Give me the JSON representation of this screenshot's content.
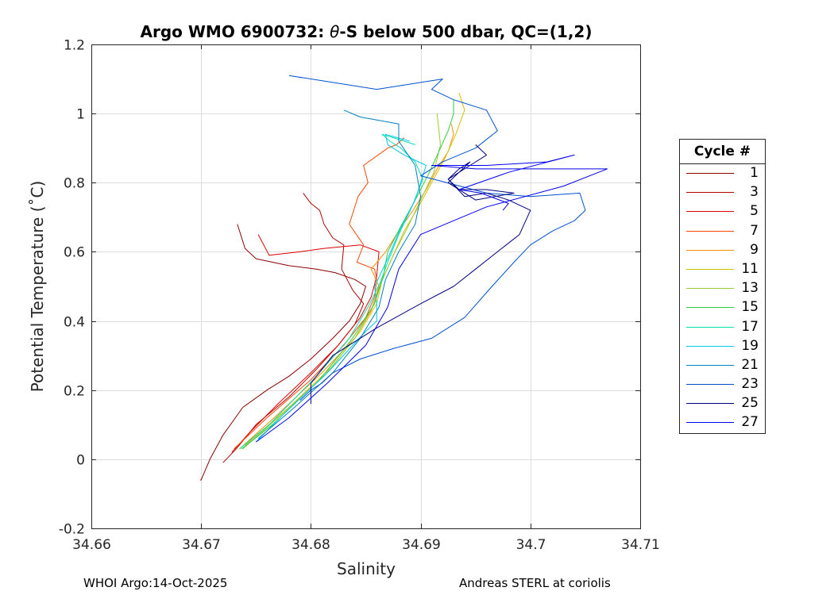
{
  "chart_data": {
    "type": "line",
    "title_prefix": "Argo WMO 6900732: ",
    "title_symbol": "θ",
    "title_suffix": "-S below 500 dbar,  QC=(1,2)",
    "xlabel": "Salinity",
    "ylabel": "Potential Temperature (˚C)",
    "xlim": [
      34.66,
      34.71
    ],
    "ylim": [
      -0.2,
      1.2
    ],
    "grid": true,
    "xticks": [
      "34.66",
      "34.67",
      "34.68",
      "34.69",
      "34.7",
      "34.71"
    ],
    "yticks": [
      "-0.2",
      "0",
      "0.2",
      "0.4",
      "0.6",
      "0.8",
      "1",
      "1.2"
    ],
    "legend_title": "Cycle #",
    "legend_position": "right",
    "series": [
      {
        "name": "1",
        "color": "#8b0000",
        "x": [
          34.6699,
          34.67,
          34.6708,
          34.672,
          34.6738,
          34.676,
          34.678,
          34.68,
          34.682,
          34.6835,
          34.6845,
          34.685,
          34.684,
          34.6822,
          34.6805,
          34.678,
          34.675,
          34.674,
          34.6736,
          34.6733
        ],
        "y": [
          -0.06,
          -0.06,
          0.0,
          0.07,
          0.15,
          0.2,
          0.24,
          0.29,
          0.35,
          0.4,
          0.45,
          0.5,
          0.52,
          0.54,
          0.55,
          0.56,
          0.58,
          0.61,
          0.65,
          0.68
        ]
      },
      {
        "name": "3",
        "color": "#b30000",
        "x": [
          34.672,
          34.6732,
          34.675,
          34.678,
          34.6805,
          34.6825,
          34.684,
          34.6848,
          34.6838,
          34.6828,
          34.683,
          34.682,
          34.6812,
          34.6808,
          34.68,
          34.6793
        ],
        "y": [
          -0.01,
          0.03,
          0.1,
          0.18,
          0.26,
          0.33,
          0.39,
          0.45,
          0.49,
          0.55,
          0.62,
          0.64,
          0.68,
          0.72,
          0.74,
          0.77
        ]
      },
      {
        "name": "5",
        "color": "#dd0000",
        "x": [
          34.6728,
          34.6745,
          34.677,
          34.68,
          34.6825,
          34.6845,
          34.6855,
          34.686,
          34.6862,
          34.6845,
          34.6812,
          34.679,
          34.6762,
          34.6752
        ],
        "y": [
          0.02,
          0.08,
          0.16,
          0.25,
          0.33,
          0.41,
          0.47,
          0.53,
          0.6,
          0.62,
          0.61,
          0.6,
          0.59,
          0.65
        ]
      },
      {
        "name": "7",
        "color": "#ff4500",
        "x": [
          34.673,
          34.676,
          34.68,
          34.683,
          34.685,
          34.6858,
          34.686,
          34.6858,
          34.6842,
          34.6848,
          34.6835,
          34.6843,
          34.6852,
          34.6848,
          34.687,
          34.6878,
          34.6885
        ],
        "y": [
          0.03,
          0.12,
          0.23,
          0.33,
          0.41,
          0.47,
          0.52,
          0.55,
          0.57,
          0.62,
          0.68,
          0.76,
          0.8,
          0.85,
          0.9,
          0.91,
          0.93
        ]
      },
      {
        "name": "9",
        "color": "#ff8c00",
        "x": [
          34.6735,
          34.677,
          34.681,
          34.684,
          34.6855,
          34.6862,
          34.6855,
          34.6868,
          34.688,
          34.6893,
          34.6905,
          34.6915,
          34.6925,
          34.693,
          34.6928
        ],
        "y": [
          0.03,
          0.13,
          0.25,
          0.35,
          0.43,
          0.5,
          0.55,
          0.6,
          0.66,
          0.72,
          0.78,
          0.84,
          0.89,
          0.94,
          0.97
        ]
      },
      {
        "name": "11",
        "color": "#d4c000",
        "x": [
          34.674,
          34.678,
          34.682,
          34.6845,
          34.686,
          34.6865,
          34.6875,
          34.6885,
          34.6898,
          34.691,
          34.6922,
          34.6932,
          34.694,
          34.6935
        ],
        "y": [
          0.04,
          0.15,
          0.27,
          0.37,
          0.45,
          0.52,
          0.59,
          0.66,
          0.73,
          0.8,
          0.87,
          0.94,
          1.01,
          1.06
        ]
      },
      {
        "name": "13",
        "color": "#9acd32",
        "x": [
          34.6738,
          34.677,
          34.6812,
          34.684,
          34.6856,
          34.6864,
          34.6875,
          34.6888,
          34.69,
          34.6912,
          34.6918,
          34.6915
        ],
        "y": [
          0.03,
          0.12,
          0.24,
          0.35,
          0.44,
          0.51,
          0.59,
          0.67,
          0.75,
          0.83,
          0.91,
          1.0
        ]
      },
      {
        "name": "15",
        "color": "#2ecc40",
        "x": [
          34.6737,
          34.6765,
          34.6808,
          34.6838,
          34.6858,
          34.6866,
          34.687,
          34.6883,
          34.6895,
          34.6908,
          34.6918,
          34.6925,
          34.693,
          34.693
        ],
        "y": [
          0.03,
          0.1,
          0.23,
          0.35,
          0.45,
          0.53,
          0.6,
          0.68,
          0.75,
          0.83,
          0.9,
          0.95,
          1.0,
          1.04
        ]
      },
      {
        "name": "17",
        "color": "#00e0b0",
        "x": [
          34.6735,
          34.6762,
          34.6805,
          34.6835,
          34.6852,
          34.6863,
          34.687,
          34.688,
          34.6892,
          34.6902,
          34.6895,
          34.6882,
          34.6872,
          34.6865,
          34.6875,
          34.6895
        ],
        "y": [
          0.03,
          0.1,
          0.24,
          0.35,
          0.44,
          0.51,
          0.57,
          0.65,
          0.73,
          0.81,
          0.86,
          0.9,
          0.92,
          0.94,
          0.93,
          0.91
        ]
      },
      {
        "name": "19",
        "color": "#00c8e8",
        "x": [
          34.675,
          34.6775,
          34.6815,
          34.685,
          34.686,
          34.686,
          34.6858,
          34.687,
          34.6882,
          34.6895,
          34.6905,
          34.6885,
          34.687,
          34.6868,
          34.689
        ],
        "y": [
          0.05,
          0.13,
          0.25,
          0.37,
          0.4,
          0.45,
          0.5,
          0.58,
          0.67,
          0.75,
          0.85,
          0.88,
          0.91,
          0.94,
          0.92
        ]
      },
      {
        "name": "21",
        "color": "#0080c0",
        "x": [
          34.6752,
          34.6785,
          34.682,
          34.6845,
          34.6862,
          34.6868,
          34.688,
          34.6895,
          34.69,
          34.6895,
          34.688,
          34.688,
          34.6845,
          34.683
        ],
        "y": [
          0.06,
          0.15,
          0.25,
          0.35,
          0.44,
          0.52,
          0.6,
          0.68,
          0.76,
          0.85,
          0.92,
          0.97,
          0.99,
          1.01
        ]
      },
      {
        "name": "23",
        "color": "#0050d0",
        "x": [
          34.679,
          34.68,
          34.681,
          34.682,
          34.6845,
          34.6875,
          34.691,
          34.694,
          34.6965,
          34.6985,
          34.7,
          34.702,
          34.704,
          34.705,
          34.7045,
          34.7,
          34.696,
          34.69,
          34.692,
          34.695,
          34.697,
          34.696,
          34.693,
          34.691,
          34.692,
          34.69,
          34.688,
          34.686,
          34.678
        ],
        "y": [
          0.17,
          0.2,
          0.22,
          0.25,
          0.29,
          0.32,
          0.35,
          0.41,
          0.5,
          0.57,
          0.62,
          0.66,
          0.69,
          0.72,
          0.77,
          0.76,
          0.77,
          0.82,
          0.86,
          0.9,
          0.95,
          1.01,
          1.04,
          1.07,
          1.1,
          1.09,
          1.08,
          1.07,
          1.11
        ]
      },
      {
        "name": "25",
        "color": "#000080",
        "x": [
          34.68,
          34.68,
          34.682,
          34.686,
          34.69,
          34.693,
          34.695,
          34.697,
          34.699,
          34.7,
          34.698,
          34.696,
          34.694,
          34.6925,
          34.6935,
          34.6945,
          34.6925,
          34.695,
          34.6985,
          34.696,
          34.6935,
          34.6925,
          34.6945,
          34.696,
          34.695
        ],
        "y": [
          0.16,
          0.22,
          0.3,
          0.38,
          0.45,
          0.5,
          0.55,
          0.6,
          0.65,
          0.72,
          0.75,
          0.77,
          0.76,
          0.81,
          0.84,
          0.86,
          0.8,
          0.75,
          0.77,
          0.78,
          0.78,
          0.81,
          0.85,
          0.88,
          0.91
        ]
      },
      {
        "name": "27",
        "color": "#0000ee",
        "x": [
          34.675,
          34.678,
          34.6815,
          34.685,
          34.687,
          34.688,
          34.69,
          34.696,
          34.703,
          34.707,
          34.7,
          34.695,
          34.691,
          34.696,
          34.7015,
          34.704,
          34.698,
          34.6935,
          34.6955,
          34.698,
          34.6975
        ],
        "y": [
          0.05,
          0.12,
          0.22,
          0.33,
          0.44,
          0.55,
          0.65,
          0.73,
          0.79,
          0.84,
          0.84,
          0.84,
          0.85,
          0.85,
          0.86,
          0.88,
          0.83,
          0.78,
          0.77,
          0.74,
          0.72
        ]
      }
    ]
  },
  "footer": {
    "left": "WHOI Argo:14-Oct-2025",
    "right": "Andreas STERL at coriolis"
  }
}
